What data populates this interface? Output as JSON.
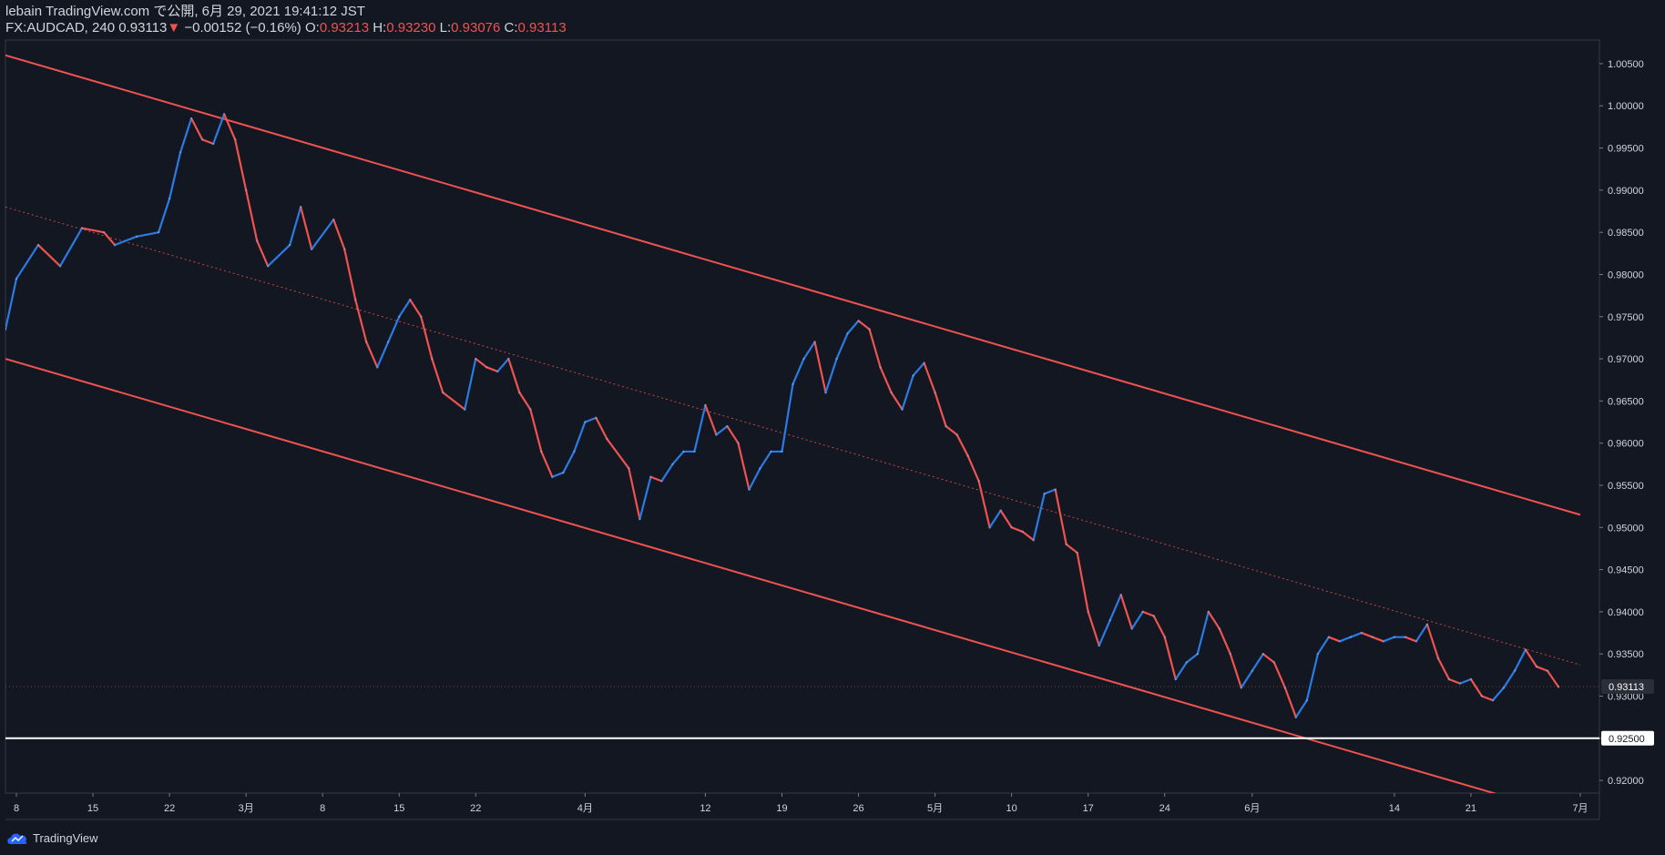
{
  "header": {
    "author": "lebain",
    "published_text": "TradingView.com で公開, 6月 29, 2021 19:41:12 JST",
    "symbol_interval": "FX:AUDCAD, 240",
    "last_price": "0.93113",
    "change_arrow": "▼",
    "change": "−0.00152 (−0.16%)",
    "o_label": "O:",
    "o_value": "0.93213",
    "h_label": "H:",
    "h_value": "0.93230",
    "l_label": "L:",
    "l_value": "0.93076",
    "c_label": "C:",
    "c_value": "0.93113"
  },
  "footer": {
    "brand": "TradingView",
    "logo_icon": "tradingview-cloud-icon"
  },
  "colors": {
    "background": "#131722",
    "up": "#2a7be4",
    "down": "#ef5350",
    "channel": "#ef5350",
    "support_line": "#ffffff",
    "axis_text": "#d1d4dc",
    "grid_border": "#363a45"
  },
  "chart_data": {
    "type": "line",
    "ylim": [
      0.9185,
      1.0078
    ],
    "y_ticks": [
      "1.00500",
      "1.00000",
      "0.99500",
      "0.99000",
      "0.98500",
      "0.98000",
      "0.97500",
      "0.97000",
      "0.96500",
      "0.96000",
      "0.95500",
      "0.95000",
      "0.94500",
      "0.94000",
      "0.93500",
      "0.93000",
      "0.92500",
      "0.92000"
    ],
    "x_ticks": [
      {
        "label": "8",
        "date": "2021-02-08"
      },
      {
        "label": "15",
        "date": "2021-02-15"
      },
      {
        "label": "22",
        "date": "2021-02-22"
      },
      {
        "label": "3月",
        "date": "2021-03-01"
      },
      {
        "label": "8",
        "date": "2021-03-08"
      },
      {
        "label": "15",
        "date": "2021-03-15"
      },
      {
        "label": "22",
        "date": "2021-03-22"
      },
      {
        "label": "4月",
        "date": "2021-04-01"
      },
      {
        "label": "12",
        "date": "2021-04-12"
      },
      {
        "label": "19",
        "date": "2021-04-19"
      },
      {
        "label": "26",
        "date": "2021-04-26"
      },
      {
        "label": "5月",
        "date": "2021-05-03"
      },
      {
        "label": "10",
        "date": "2021-05-10"
      },
      {
        "label": "17",
        "date": "2021-05-17"
      },
      {
        "label": "24",
        "date": "2021-05-24"
      },
      {
        "label": "6月",
        "date": "2021-06-01"
      },
      {
        "label": "14",
        "date": "2021-06-14"
      },
      {
        "label": "21",
        "date": "2021-06-21"
      },
      {
        "label": "7月",
        "date": "2021-07-01"
      }
    ],
    "x_range": [
      "2021-02-07",
      "2021-07-01"
    ],
    "price_points": [
      [
        "2021-02-07",
        0.9735
      ],
      [
        "2021-02-08",
        0.9795
      ],
      [
        "2021-02-10",
        0.9835
      ],
      [
        "2021-02-12",
        0.981
      ],
      [
        "2021-02-14",
        0.9855
      ],
      [
        "2021-02-16",
        0.985
      ],
      [
        "2021-02-17",
        0.9835
      ],
      [
        "2021-02-19",
        0.9845
      ],
      [
        "2021-02-21",
        0.985
      ],
      [
        "2021-02-22",
        0.989
      ],
      [
        "2021-02-23",
        0.9945
      ],
      [
        "2021-02-24",
        0.9985
      ],
      [
        "2021-02-25",
        0.996
      ],
      [
        "2021-02-26",
        0.9955
      ],
      [
        "2021-02-27",
        0.999
      ],
      [
        "2021-02-28",
        0.996
      ],
      [
        "2021-03-01",
        0.99
      ],
      [
        "2021-03-02",
        0.984
      ],
      [
        "2021-03-03",
        0.981
      ],
      [
        "2021-03-05",
        0.9835
      ],
      [
        "2021-03-06",
        0.988
      ],
      [
        "2021-03-07",
        0.983
      ],
      [
        "2021-03-09",
        0.9865
      ],
      [
        "2021-03-10",
        0.983
      ],
      [
        "2021-03-11",
        0.977
      ],
      [
        "2021-03-12",
        0.972
      ],
      [
        "2021-03-13",
        0.969
      ],
      [
        "2021-03-14",
        0.972
      ],
      [
        "2021-03-15",
        0.975
      ],
      [
        "2021-03-16",
        0.977
      ],
      [
        "2021-03-17",
        0.975
      ],
      [
        "2021-03-18",
        0.97
      ],
      [
        "2021-03-19",
        0.966
      ],
      [
        "2021-03-21",
        0.964
      ],
      [
        "2021-03-22",
        0.97
      ],
      [
        "2021-03-23",
        0.969
      ],
      [
        "2021-03-24",
        0.9685
      ],
      [
        "2021-03-25",
        0.97
      ],
      [
        "2021-03-26",
        0.966
      ],
      [
        "2021-03-27",
        0.964
      ],
      [
        "2021-03-28",
        0.959
      ],
      [
        "2021-03-29",
        0.956
      ],
      [
        "2021-03-30",
        0.9565
      ],
      [
        "2021-03-31",
        0.959
      ],
      [
        "2021-04-01",
        0.9625
      ],
      [
        "2021-04-02",
        0.963
      ],
      [
        "2021-04-03",
        0.9605
      ],
      [
        "2021-04-05",
        0.957
      ],
      [
        "2021-04-06",
        0.951
      ],
      [
        "2021-04-07",
        0.956
      ],
      [
        "2021-04-08",
        0.9555
      ],
      [
        "2021-04-09",
        0.9575
      ],
      [
        "2021-04-10",
        0.959
      ],
      [
        "2021-04-11",
        0.959
      ],
      [
        "2021-04-12",
        0.9645
      ],
      [
        "2021-04-13",
        0.961
      ],
      [
        "2021-04-14",
        0.962
      ],
      [
        "2021-04-15",
        0.96
      ],
      [
        "2021-04-16",
        0.9545
      ],
      [
        "2021-04-17",
        0.957
      ],
      [
        "2021-04-18",
        0.959
      ],
      [
        "2021-04-19",
        0.959
      ],
      [
        "2021-04-20",
        0.967
      ],
      [
        "2021-04-21",
        0.97
      ],
      [
        "2021-04-22",
        0.972
      ],
      [
        "2021-04-23",
        0.966
      ],
      [
        "2021-04-24",
        0.97
      ],
      [
        "2021-04-25",
        0.973
      ],
      [
        "2021-04-26",
        0.9745
      ],
      [
        "2021-04-27",
        0.9735
      ],
      [
        "2021-04-28",
        0.969
      ],
      [
        "2021-04-29",
        0.966
      ],
      [
        "2021-04-30",
        0.964
      ],
      [
        "2021-05-01",
        0.968
      ],
      [
        "2021-05-02",
        0.9695
      ],
      [
        "2021-05-03",
        0.966
      ],
      [
        "2021-05-04",
        0.962
      ],
      [
        "2021-05-05",
        0.961
      ],
      [
        "2021-05-06",
        0.9585
      ],
      [
        "2021-05-07",
        0.9555
      ],
      [
        "2021-05-08",
        0.95
      ],
      [
        "2021-05-09",
        0.952
      ],
      [
        "2021-05-10",
        0.95
      ],
      [
        "2021-05-11",
        0.9495
      ],
      [
        "2021-05-12",
        0.9485
      ],
      [
        "2021-05-13",
        0.954
      ],
      [
        "2021-05-14",
        0.9545
      ],
      [
        "2021-05-15",
        0.948
      ],
      [
        "2021-05-16",
        0.947
      ],
      [
        "2021-05-17",
        0.94
      ],
      [
        "2021-05-18",
        0.936
      ],
      [
        "2021-05-19",
        0.939
      ],
      [
        "2021-05-20",
        0.942
      ],
      [
        "2021-05-21",
        0.938
      ],
      [
        "2021-05-22",
        0.94
      ],
      [
        "2021-05-23",
        0.9395
      ],
      [
        "2021-05-24",
        0.937
      ],
      [
        "2021-05-25",
        0.932
      ],
      [
        "2021-05-26",
        0.934
      ],
      [
        "2021-05-27",
        0.935
      ],
      [
        "2021-05-28",
        0.94
      ],
      [
        "2021-05-29",
        0.938
      ],
      [
        "2021-05-30",
        0.935
      ],
      [
        "2021-05-31",
        0.931
      ],
      [
        "2021-06-01",
        0.933
      ],
      [
        "2021-06-02",
        0.935
      ],
      [
        "2021-06-03",
        0.934
      ],
      [
        "2021-06-04",
        0.931
      ],
      [
        "2021-06-05",
        0.9275
      ],
      [
        "2021-06-06",
        0.9295
      ],
      [
        "2021-06-07",
        0.935
      ],
      [
        "2021-06-08",
        0.937
      ],
      [
        "2021-06-09",
        0.9365
      ],
      [
        "2021-06-10",
        0.937
      ],
      [
        "2021-06-11",
        0.9375
      ],
      [
        "2021-06-12",
        0.937
      ],
      [
        "2021-06-13",
        0.9365
      ],
      [
        "2021-06-14",
        0.937
      ],
      [
        "2021-06-15",
        0.937
      ],
      [
        "2021-06-16",
        0.9365
      ],
      [
        "2021-06-17",
        0.9385
      ],
      [
        "2021-06-18",
        0.9345
      ],
      [
        "2021-06-19",
        0.932
      ],
      [
        "2021-06-20",
        0.9315
      ],
      [
        "2021-06-21",
        0.932
      ],
      [
        "2021-06-22",
        0.93
      ],
      [
        "2021-06-23",
        0.9295
      ],
      [
        "2021-06-24",
        0.931
      ],
      [
        "2021-06-25",
        0.933
      ],
      [
        "2021-06-26",
        0.9355
      ],
      [
        "2021-06-27",
        0.9335
      ],
      [
        "2021-06-28",
        0.933
      ],
      [
        "2021-06-29",
        0.9311
      ]
    ],
    "channel_upper": [
      [
        "2021-02-07",
        1.006
      ],
      [
        "2021-07-01",
        0.9515
      ]
    ],
    "channel_mid": [
      [
        "2021-02-07",
        0.988
      ],
      [
        "2021-07-01",
        0.9337
      ]
    ],
    "channel_lower": [
      [
        "2021-02-07",
        0.97
      ],
      [
        "2021-07-01",
        0.9155
      ]
    ],
    "support_level": 0.925,
    "support_label": "0.92500",
    "last_price": 0.93113,
    "last_price_label": "0.93113"
  }
}
